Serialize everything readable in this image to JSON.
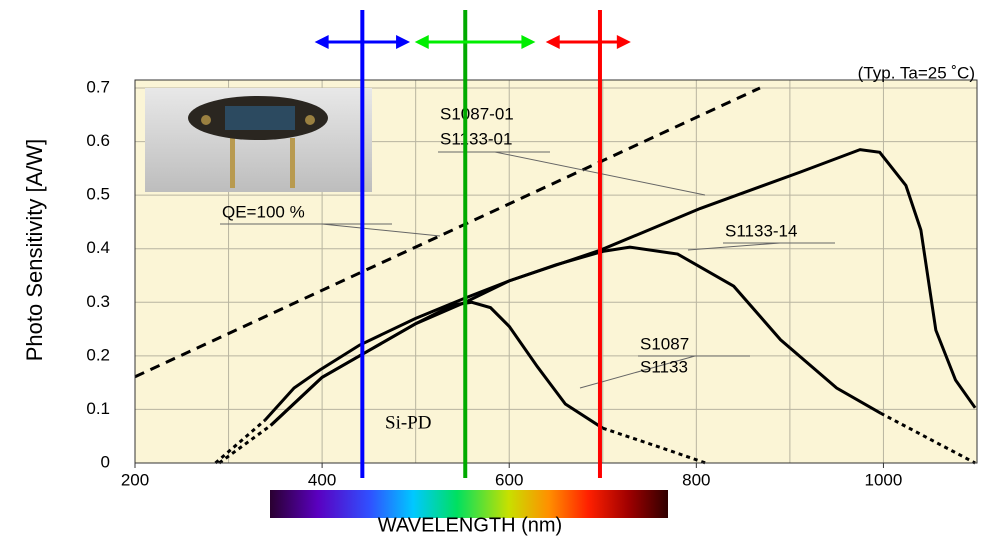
{
  "chart_data": {
    "type": "line",
    "title": "(Typ. Ta=25 ˚C)",
    "ylabel": "Photo Sensitivity [A/W]",
    "xlabel": "WAVELENGTH (nm)",
    "xlim": [
      200,
      1100
    ],
    "ylim": [
      0,
      0.7
    ],
    "xticks": [
      200,
      400,
      600,
      800,
      1000
    ],
    "yticks": [
      0,
      0.1,
      0.2,
      0.3,
      0.4,
      0.5,
      0.6,
      0.7
    ],
    "xgrid": [
      300,
      400,
      500,
      600,
      700,
      800,
      900,
      1000
    ],
    "grid": true,
    "series": [
      {
        "style": "dashed",
        "color": "#000000",
        "x": [
          200,
          868
        ],
        "values": [
          0.161,
          0.7
        ]
      },
      {
        "style": "solid",
        "color": "#000000",
        "x": [
          339,
          370,
          398,
          440,
          500,
          553,
          600,
          697,
          804,
          911,
          975,
          996,
          1024,
          1040,
          1056,
          1077,
          1098
        ],
        "values": [
          0.08,
          0.14,
          0.174,
          0.22,
          0.27,
          0.308,
          0.34,
          0.397,
          0.475,
          0.543,
          0.585,
          0.58,
          0.518,
          0.435,
          0.248,
          0.155,
          0.103
        ]
      },
      {
        "style": "dotted",
        "color": "#000000",
        "x": [
          286,
          339
        ],
        "values": [
          0,
          0.08
        ]
      },
      {
        "style": "solid",
        "color": "#000000",
        "x": [
          345,
          400,
          450,
          500,
          553,
          600,
          650,
          700,
          729,
          780,
          840,
          890,
          950,
          997
        ],
        "values": [
          0.07,
          0.16,
          0.21,
          0.26,
          0.3,
          0.34,
          0.37,
          0.395,
          0.403,
          0.39,
          0.33,
          0.23,
          0.14,
          0.093
        ]
      },
      {
        "style": "dotted",
        "color": "#000000",
        "x": [
          997,
          1098
        ],
        "values": [
          0.093,
          0
        ]
      },
      {
        "style": "solid",
        "color": "#000000",
        "x": [
          345,
          400,
          450,
          500,
          540,
          560,
          580,
          600,
          630,
          660,
          700
        ],
        "values": [
          0.07,
          0.16,
          0.21,
          0.26,
          0.295,
          0.3,
          0.29,
          0.255,
          0.18,
          0.11,
          0.065
        ]
      },
      {
        "style": "dotted",
        "color": "#000000",
        "x": [
          700,
          760,
          810
        ],
        "values": [
          0.065,
          0.03,
          0
        ]
      },
      {
        "style": "dotted",
        "color": "#000000",
        "x": [
          290,
          345
        ],
        "values": [
          0,
          0.07
        ]
      }
    ],
    "vlines": [
      {
        "x": 443,
        "color": "#0000ff"
      },
      {
        "x": 553,
        "color": "#00aa00"
      },
      {
        "x": 697,
        "color": "#ff0000"
      }
    ],
    "ranges": [
      {
        "x": [
          392,
          494
        ],
        "color": "#0000ff"
      },
      {
        "x": [
          499,
          628
        ],
        "color": "#00ee00"
      },
      {
        "x": [
          639,
          730
        ],
        "color": "#ff0000"
      }
    ],
    "annotations": [
      "S1087-01",
      "S1133-01",
      "S1133-14",
      "S1087",
      "S1133",
      "QE=100 %",
      "Si-PD"
    ]
  }
}
